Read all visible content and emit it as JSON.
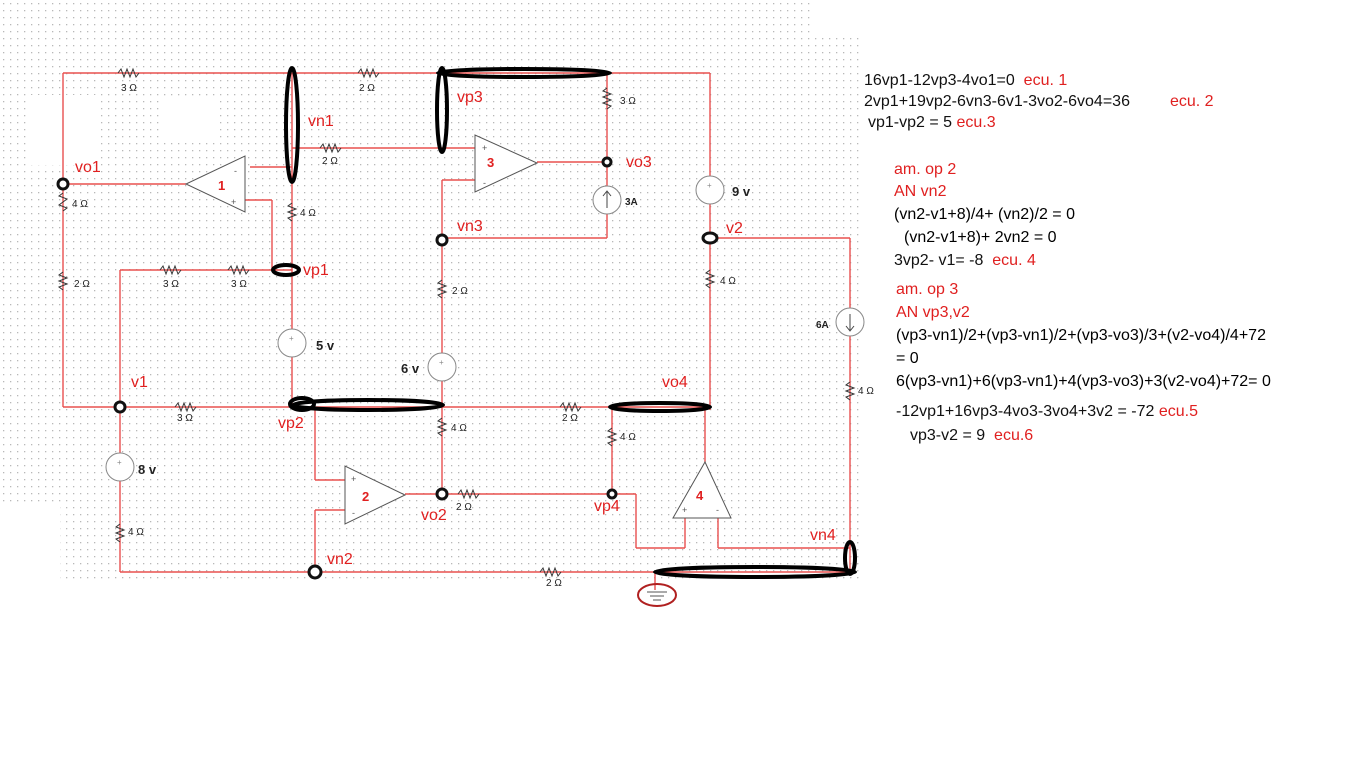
{
  "diagram": {
    "resistor_labels": {
      "r_top_left": "3 Ω",
      "r_top_mid": "2 Ω",
      "r_vp3_right": "3 Ω",
      "r_opamp1_in": "2 Ω",
      "r_vo1_down": "4 Ω",
      "r_vn1_down": "4 Ω",
      "r_left_mid": "2 Ω",
      "r_vp1_a": "3 Ω",
      "r_vp1_b": "3 Ω",
      "r_vn3_down": "2 Ω",
      "r_v2_down": "4 Ω",
      "r_v1_vp2": "3 Ω",
      "r_vp2_vo4": "2 Ω",
      "r_vo2_up": "4 Ω",
      "r_vp4_up": "4 Ω",
      "r_vo2_vp4": "2 Ω",
      "r_left_bottom": "4 Ω",
      "r_bottom": "2 Ω",
      "r_right_down": "4 Ω"
    },
    "sources": {
      "v5": "5 v",
      "v6": "6 v",
      "v8": "8 v",
      "v9": "9 v",
      "i3": "3A",
      "i6": "6A"
    },
    "opamps": [
      "1",
      "2",
      "3",
      "4"
    ],
    "nodes": {
      "vo1": "vo1",
      "vn1": "vn1",
      "vp3": "vp3",
      "vo3": "vo3",
      "vn3": "vn3",
      "v2": "v2",
      "vp1": "vp1",
      "v1": "v1",
      "vp2": "vp2",
      "vo4": "vo4",
      "vo2": "vo2",
      "vp4": "vp4",
      "vn4": "vn4",
      "vn2": "vn2"
    }
  },
  "notes": {
    "eq1": "16vp1-12vp3-4vo1=0",
    "eq1_tag": "ecu. 1",
    "eq2": "2vp1+19vp2-6vn3-6v1-3vo2-6vo4=36",
    "eq2_tag": "ecu. 2",
    "eq3": "vp1-vp2 = 5",
    "eq3_tag": "ecu.3",
    "sec2_title": "am. op 2",
    "sec2_an": "AN vn2",
    "sec2_l1": "(vn2-v1+8)/4+ (vn2)/2 = 0",
    "sec2_l2": "(vn2-v1+8)+ 2vn2 = 0",
    "sec2_l3": "3vp2-  v1= -8",
    "sec2_tag": "ecu. 4",
    "sec3_title": "am. op 3",
    "sec3_an": "AN vp3,v2",
    "sec3_l1": "(vp3-vn1)/2+(vp3-vn1)/2+(vp3-vo3)/3+(v2-vo4)/4+72",
    "sec3_l1b": "= 0",
    "sec3_l2": "6(vp3-vn1)+6(vp3-vn1)+4(vp3-vo3)+3(v2-vo4)+72= 0",
    "sec3_l3": "-12vp1+16vp3-4vo3-3vo4+3v2 = -72",
    "sec3_tag": "ecu.5",
    "sec3_l4": "vp3-v2 = 9",
    "sec3_l4_tag": "ecu.6"
  },
  "colors": {
    "wire": "#e8504f",
    "text_red": "#e02020",
    "ink": "#111111",
    "grid": "#c8c8c8"
  }
}
